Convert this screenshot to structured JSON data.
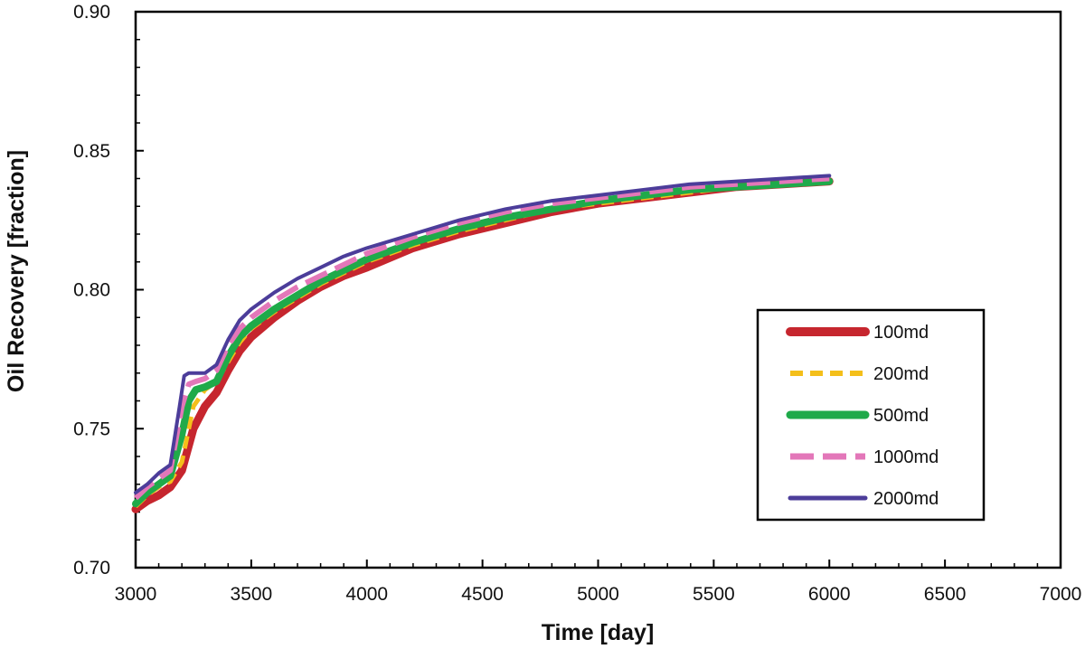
{
  "chart_data": {
    "type": "line",
    "title": "",
    "xlabel": "Time [day]",
    "ylabel": "Oil Recovery [fraction]",
    "xlim": [
      3000,
      7000
    ],
    "ylim": [
      0.7,
      0.9
    ],
    "xticks": [
      "3000",
      "3500",
      "4000",
      "4500",
      "5000",
      "5500",
      "6000",
      "6500",
      "7000"
    ],
    "yticks": [
      "0.70",
      "0.75",
      "0.80",
      "0.85",
      "0.90"
    ],
    "grid": false,
    "legend_position": "right",
    "series": [
      {
        "name": "100md",
        "color": "#c6262e",
        "dash": "solid",
        "width": 9,
        "x": [
          3000,
          3050,
          3100,
          3150,
          3200,
          3250,
          3300,
          3350,
          3400,
          3450,
          3500,
          3600,
          3700,
          3800,
          3900,
          4000,
          4200,
          4400,
          4600,
          4800,
          5000,
          5200,
          5400,
          5600,
          5800,
          6000
        ],
        "y": [
          0.721,
          0.724,
          0.726,
          0.729,
          0.735,
          0.75,
          0.758,
          0.763,
          0.771,
          0.778,
          0.783,
          0.79,
          0.796,
          0.801,
          0.805,
          0.808,
          0.815,
          0.82,
          0.824,
          0.828,
          0.831,
          0.833,
          0.835,
          0.837,
          0.838,
          0.839
        ]
      },
      {
        "name": "200md",
        "color": "#f4bf1a",
        "dash": "dashed",
        "width": 5,
        "x": [
          3000,
          3050,
          3100,
          3150,
          3200,
          3250,
          3300,
          3350,
          3400,
          3450,
          3500,
          3600,
          3700,
          3800,
          3900,
          4000,
          4200,
          4400,
          4600,
          4800,
          5000,
          5200,
          5400,
          5600,
          5800,
          6000
        ],
        "y": [
          0.722,
          0.726,
          0.729,
          0.731,
          0.738,
          0.758,
          0.764,
          0.767,
          0.774,
          0.781,
          0.786,
          0.792,
          0.797,
          0.802,
          0.806,
          0.81,
          0.816,
          0.821,
          0.825,
          0.829,
          0.831,
          0.833,
          0.835,
          0.837,
          0.838,
          0.839
        ]
      },
      {
        "name": "500md",
        "color": "#1faa4a",
        "dash": "solid",
        "width": 8,
        "x": [
          3000,
          3050,
          3100,
          3150,
          3200,
          3230,
          3260,
          3300,
          3350,
          3400,
          3450,
          3500,
          3600,
          3700,
          3800,
          3900,
          4000,
          4200,
          4400,
          4600,
          4800,
          5000,
          5200,
          5400,
          5600,
          5800,
          6000
        ],
        "y": [
          0.723,
          0.727,
          0.73,
          0.733,
          0.748,
          0.76,
          0.764,
          0.765,
          0.767,
          0.776,
          0.783,
          0.787,
          0.793,
          0.798,
          0.803,
          0.807,
          0.811,
          0.817,
          0.822,
          0.826,
          0.829,
          0.832,
          0.834,
          0.836,
          0.837,
          0.838,
          0.839
        ]
      },
      {
        "name": "1000md",
        "color": "#e377b9",
        "dash": "dashed",
        "width": 6,
        "x": [
          3000,
          3050,
          3100,
          3150,
          3200,
          3230,
          3260,
          3300,
          3350,
          3400,
          3450,
          3500,
          3600,
          3700,
          3800,
          3900,
          4000,
          4200,
          4400,
          4600,
          4800,
          5000,
          5200,
          5400,
          5600,
          5800,
          6000
        ],
        "y": [
          0.725,
          0.729,
          0.732,
          0.735,
          0.758,
          0.766,
          0.767,
          0.768,
          0.771,
          0.78,
          0.786,
          0.79,
          0.796,
          0.801,
          0.805,
          0.809,
          0.813,
          0.819,
          0.824,
          0.828,
          0.831,
          0.833,
          0.835,
          0.837,
          0.838,
          0.839,
          0.84
        ]
      },
      {
        "name": "2000md",
        "color": "#4c3d9a",
        "dash": "solid",
        "width": 4,
        "x": [
          3000,
          3050,
          3100,
          3150,
          3190,
          3210,
          3230,
          3260,
          3300,
          3350,
          3400,
          3450,
          3500,
          3600,
          3700,
          3800,
          3900,
          4000,
          4200,
          4400,
          4600,
          4800,
          5000,
          5200,
          5400,
          5600,
          5800,
          6000
        ],
        "y": [
          0.727,
          0.73,
          0.734,
          0.737,
          0.758,
          0.769,
          0.77,
          0.77,
          0.77,
          0.773,
          0.782,
          0.789,
          0.793,
          0.799,
          0.804,
          0.808,
          0.812,
          0.815,
          0.82,
          0.825,
          0.829,
          0.832,
          0.834,
          0.836,
          0.838,
          0.839,
          0.84,
          0.841
        ]
      }
    ]
  }
}
